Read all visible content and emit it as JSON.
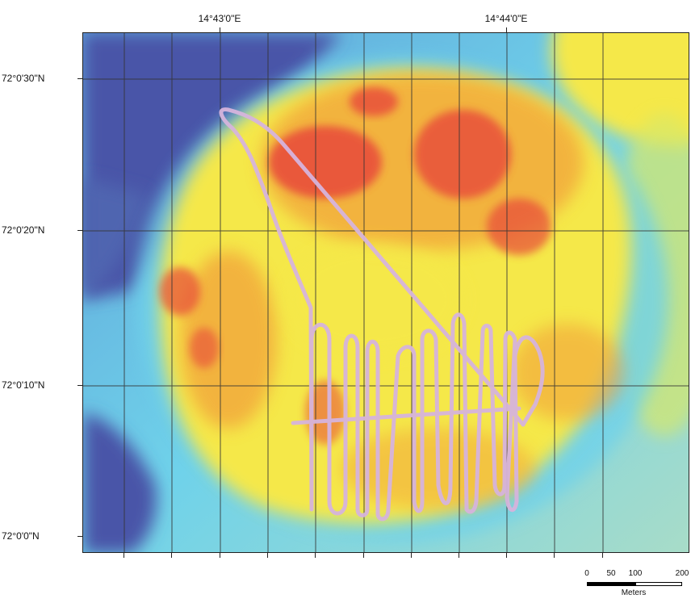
{
  "map": {
    "lon_labels": [
      "14°43'0\"E",
      "14°44'0\"E"
    ],
    "lat_labels": [
      "72°0'30\"N",
      "72°0'20\"N",
      "72°0'10\"N",
      "72°0'0\"N"
    ],
    "colors": {
      "deep": "#4a55a8",
      "mid_deep": "#5fa0d8",
      "shallow_blue": "#6fd2ea",
      "yellow": "#f5e84a",
      "orange": "#f2a23a",
      "red": "#e8483a",
      "track": "#d6b4dc",
      "grid": "#333333"
    }
  },
  "scale_bar": {
    "labels": [
      "0",
      "50",
      "100",
      "200"
    ],
    "unit": "Meters"
  }
}
